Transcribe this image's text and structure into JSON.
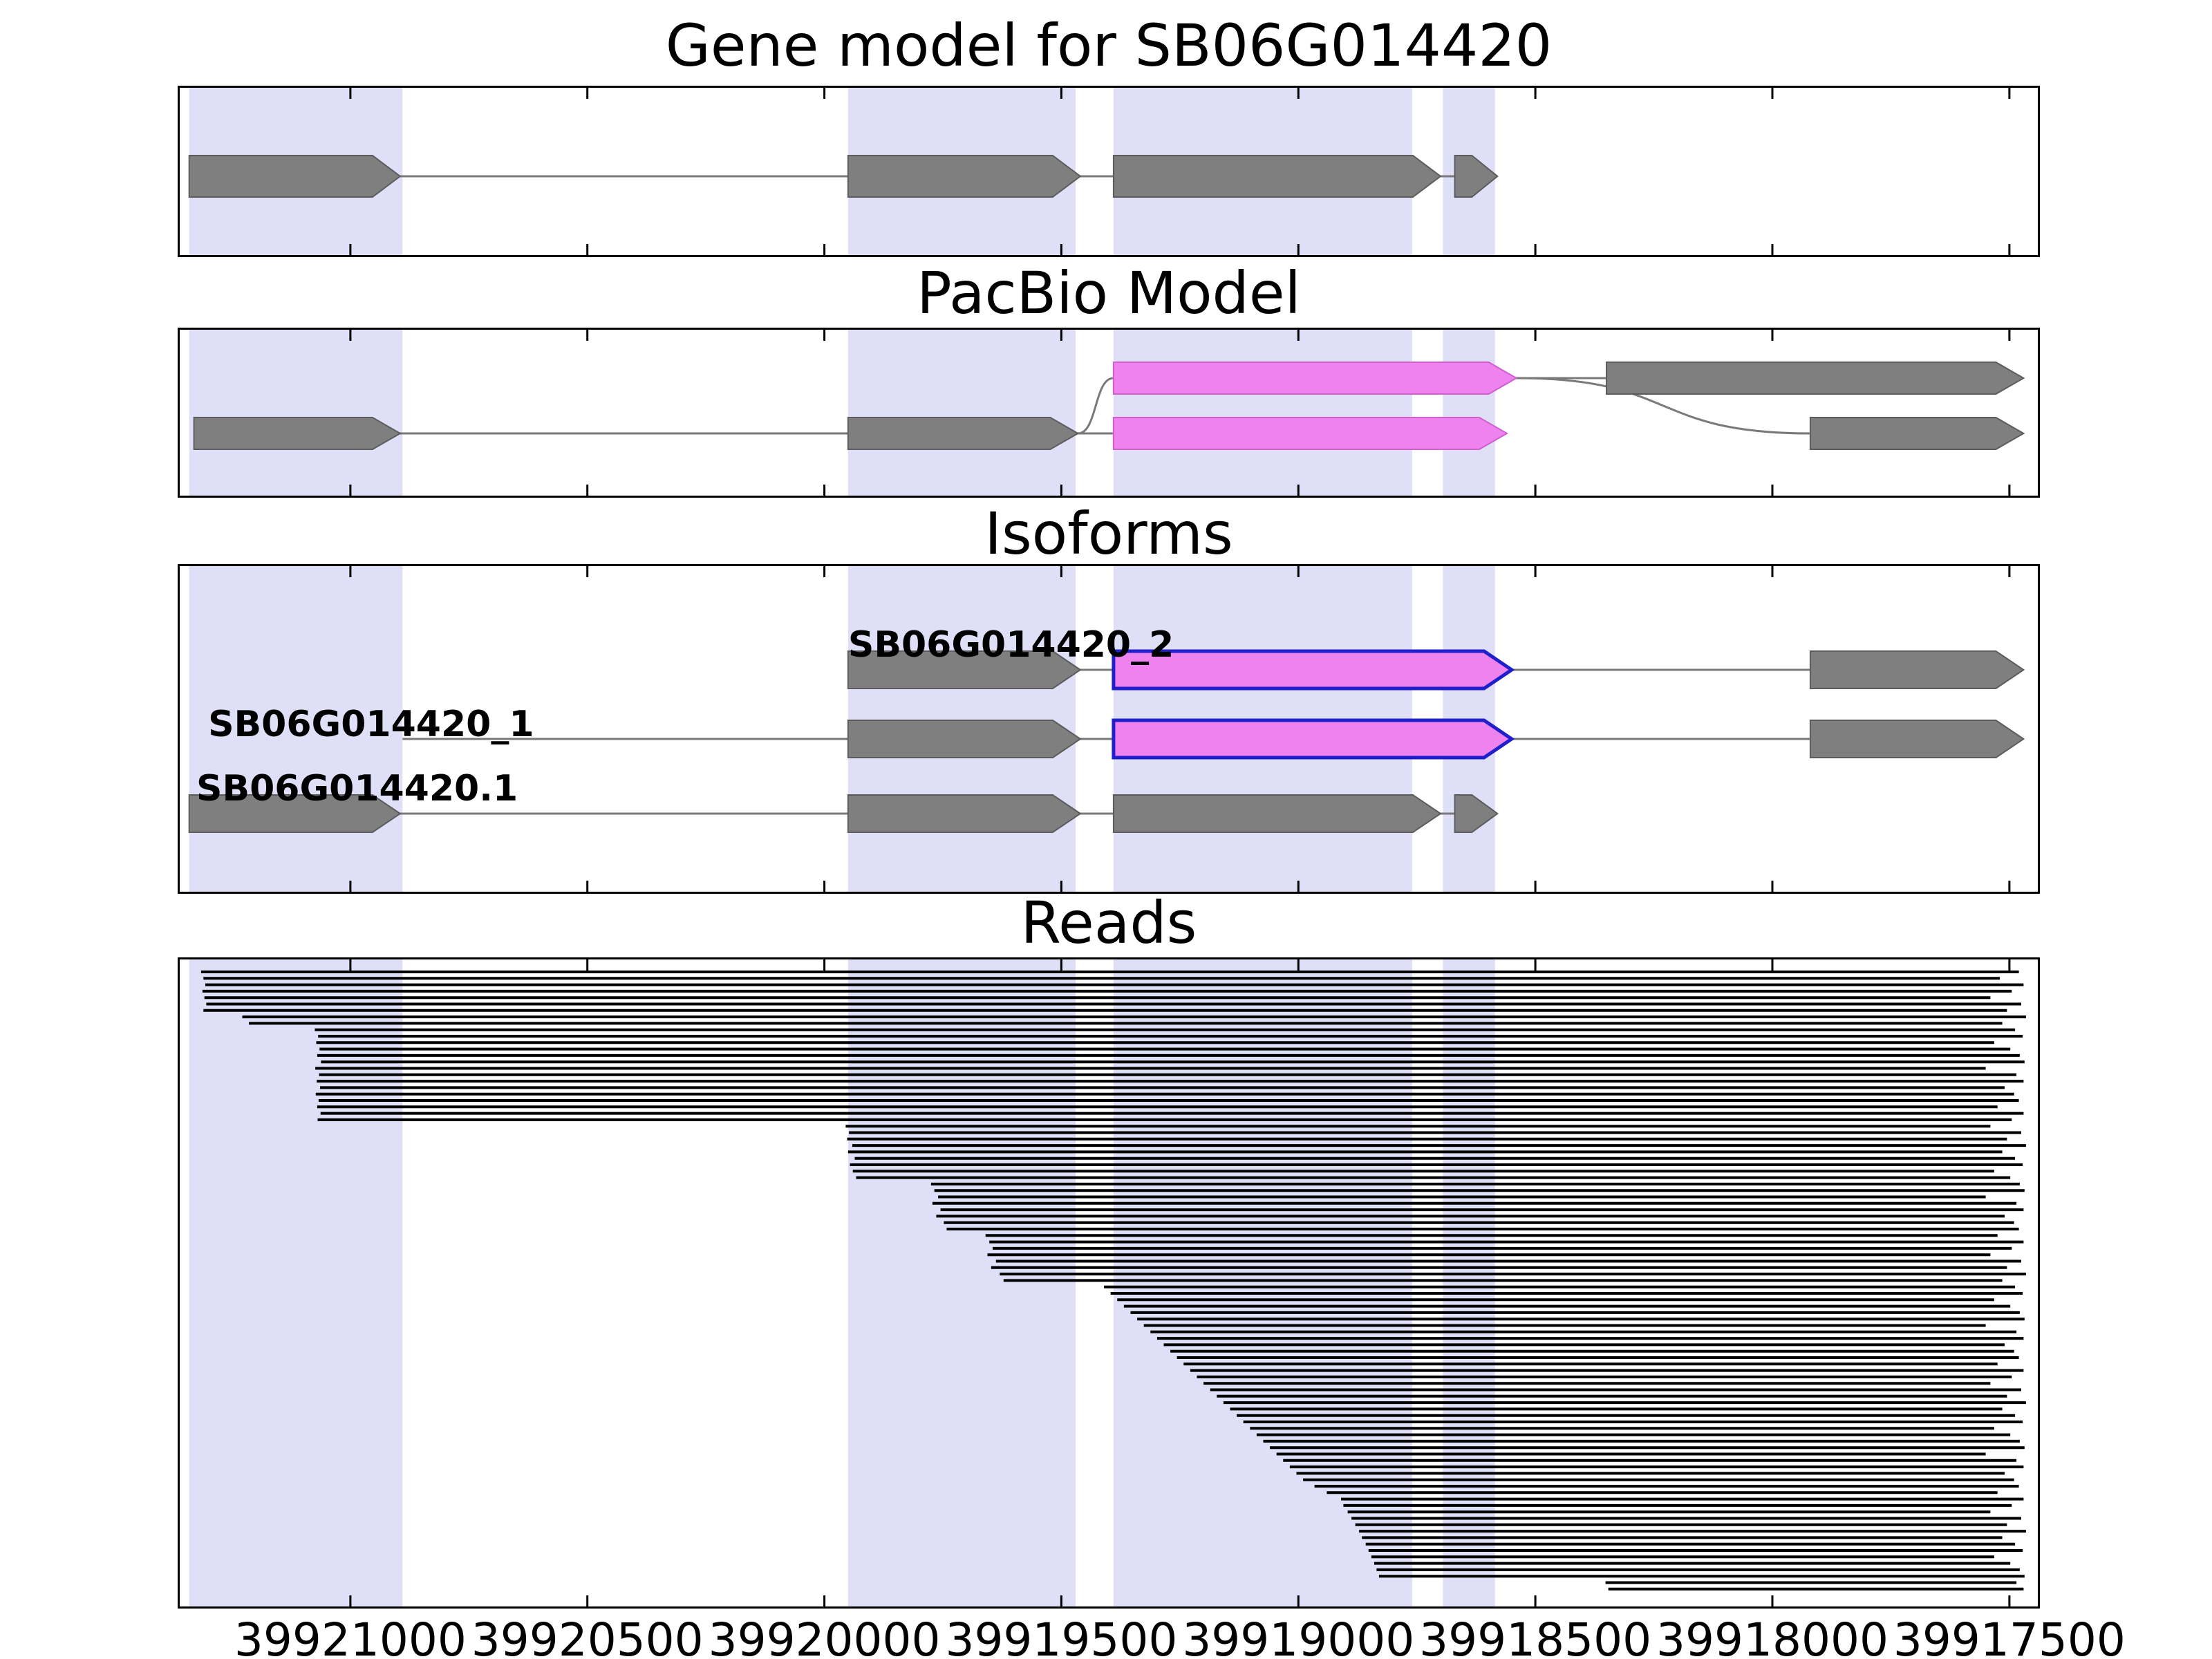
{
  "figure": {
    "background": "#ffffff"
  },
  "colors": {
    "band_fill": "#dfdff7",
    "exon_gray": "#7f7f7f",
    "exon_gray_edge": "#5c5c5c",
    "exon_magenta": "#ee82ee",
    "exon_magenta_edge": "#cf5fcf",
    "isoform_outline_blue": "#1f1fcc",
    "connector": "#7a7a7a",
    "read": "#000000",
    "panel_border": "#000000",
    "text": "#000000"
  },
  "chart_data": {
    "type": "genome-tracks",
    "x_axis": {
      "range_left": 39921360,
      "range_right": 39917440,
      "direction": "decreasing",
      "tick_values": [
        39921000,
        39920500,
        39920000,
        39919500,
        39919000,
        39918500,
        39918000,
        39917500
      ],
      "tick_labels": [
        "39921000",
        "39920500",
        "39920000",
        "39919500",
        "39919000",
        "39918500",
        "39918000",
        "39917500"
      ]
    },
    "shaded_regions": [
      [
        39921340,
        39920890
      ],
      [
        39919950,
        39919470
      ],
      [
        39919390,
        39918760
      ],
      [
        39918695,
        39918585
      ]
    ],
    "panels": [
      {
        "title": "Gene model for SB06G014420",
        "transcripts": [
          {
            "row": 0,
            "lines": [
              [
                39921340,
                39918580
              ]
            ],
            "exons": [
              {
                "start": 39921340,
                "end": 39920895,
                "color": "gray"
              },
              {
                "start": 39919950,
                "end": 39919460,
                "color": "gray"
              },
              {
                "start": 39919390,
                "end": 39918700,
                "color": "gray"
              },
              {
                "start": 39918670,
                "end": 39918580,
                "color": "gray"
              }
            ]
          }
        ]
      },
      {
        "title": "PacBio Model",
        "transcripts": [
          {
            "row": 0,
            "lines": [
              [
                39918540,
                39918350
              ]
            ],
            "exons": [
              {
                "start": 39919390,
                "end": 39918540,
                "color": "magenta"
              },
              {
                "start": 39918350,
                "end": 39917470,
                "color": "gray"
              }
            ]
          },
          {
            "row": 1,
            "lines": [
              [
                39921330,
                39919390
              ]
            ],
            "exons": [
              {
                "start": 39921330,
                "end": 39920895,
                "color": "gray"
              },
              {
                "start": 39919950,
                "end": 39919465,
                "color": "gray"
              },
              {
                "start": 39919390,
                "end": 39918560,
                "color": "magenta"
              },
              {
                "start": 39917920,
                "end": 39917470,
                "color": "gray"
              }
            ]
          }
        ],
        "curves": [
          {
            "from_bp": 39919465,
            "from_row": 1,
            "to_bp": 39919390,
            "to_row": 0
          },
          {
            "from_bp": 39918540,
            "from_row": 0,
            "to_bp": 39917920,
            "to_row": 1
          }
        ]
      },
      {
        "title": "Isoforms",
        "transcripts": [
          {
            "row": 0,
            "label": "SB06G014420_2",
            "label_bp": 39919950,
            "label_pos": "above",
            "lines": [
              [
                39919950,
                39917480
              ]
            ],
            "exons": [
              {
                "start": 39919950,
                "end": 39919460,
                "color": "gray"
              },
              {
                "start": 39919390,
                "end": 39918550,
                "color": "magenta",
                "outline": "blue"
              },
              {
                "start": 39917920,
                "end": 39917470,
                "color": "gray"
              }
            ]
          },
          {
            "row": 1,
            "label": "SB06G014420_1",
            "label_bp": 39921300,
            "label_pos": "mid",
            "lines": [
              [
                39920890,
                39917480
              ]
            ],
            "exons": [
              {
                "start": 39919950,
                "end": 39919460,
                "color": "gray"
              },
              {
                "start": 39919390,
                "end": 39918550,
                "color": "magenta",
                "outline": "blue"
              },
              {
                "start": 39917920,
                "end": 39917470,
                "color": "gray"
              }
            ]
          },
          {
            "row": 2,
            "label": "SB06G014420.1",
            "label_bp": 39921325,
            "label_pos": "above",
            "lines": [
              [
                39921340,
                39918580
              ]
            ],
            "exons": [
              {
                "start": 39921340,
                "end": 39920895,
                "color": "gray"
              },
              {
                "start": 39919950,
                "end": 39919460,
                "color": "gray"
              },
              {
                "start": 39919390,
                "end": 39918700,
                "color": "gray"
              },
              {
                "start": 39918670,
                "end": 39918580,
                "color": "gray"
              }
            ]
          }
        ]
      },
      {
        "title": "Reads",
        "reads": [
          [
            39921315,
            39917480
          ],
          [
            39921310,
            39917520
          ],
          [
            39921306,
            39917470
          ],
          [
            39921312,
            39917495
          ],
          [
            39921308,
            39917540
          ],
          [
            39921304,
            39917475
          ],
          [
            39921310,
            39917505
          ],
          [
            39921228,
            39917465
          ],
          [
            39921214,
            39917515
          ],
          [
            39921075,
            39917488
          ],
          [
            39921068,
            39917472
          ],
          [
            39921072,
            39917532
          ],
          [
            39921065,
            39917498
          ],
          [
            39921070,
            39917478
          ],
          [
            39921062,
            39917468
          ],
          [
            39921074,
            39917550
          ],
          [
            39921066,
            39917485
          ],
          [
            39921071,
            39917470
          ],
          [
            39921064,
            39917510
          ],
          [
            39921073,
            39917490
          ],
          [
            39921067,
            39917480
          ],
          [
            39921070,
            39917525
          ],
          [
            39921063,
            39917470
          ],
          [
            39921069,
            39917495
          ],
          [
            39919955,
            39917540
          ],
          [
            39919948,
            39917475
          ],
          [
            39919952,
            39917505
          ],
          [
            39919941,
            39917465
          ],
          [
            39919950,
            39917515
          ],
          [
            39919936,
            39917488
          ],
          [
            39919946,
            39917472
          ],
          [
            39919940,
            39917532
          ],
          [
            39919933,
            39917498
          ],
          [
            39919775,
            39917478
          ],
          [
            39919768,
            39917468
          ],
          [
            39919760,
            39917550
          ],
          [
            39919772,
            39917485
          ],
          [
            39919755,
            39917470
          ],
          [
            39919764,
            39917510
          ],
          [
            39919748,
            39917490
          ],
          [
            39919742,
            39917480
          ],
          [
            39919660,
            39917525
          ],
          [
            39919652,
            39917470
          ],
          [
            39919645,
            39917495
          ],
          [
            39919656,
            39917540
          ],
          [
            39919638,
            39917475
          ],
          [
            39919648,
            39917505
          ],
          [
            39919630,
            39917465
          ],
          [
            39919622,
            39917515
          ],
          [
            39919410,
            39917488
          ],
          [
            39919396,
            39917472
          ],
          [
            39919382,
            39917532
          ],
          [
            39919368,
            39917498
          ],
          [
            39919354,
            39917478
          ],
          [
            39919340,
            39917468
          ],
          [
            39919326,
            39917550
          ],
          [
            39919312,
            39917485
          ],
          [
            39919298,
            39917470
          ],
          [
            39919284,
            39917510
          ],
          [
            39919270,
            39917490
          ],
          [
            39919256,
            39917480
          ],
          [
            39919242,
            39917525
          ],
          [
            39919228,
            39917470
          ],
          [
            39919214,
            39917495
          ],
          [
            39919200,
            39917540
          ],
          [
            39919186,
            39917475
          ],
          [
            39919172,
            39917505
          ],
          [
            39919158,
            39917465
          ],
          [
            39919144,
            39917515
          ],
          [
            39919130,
            39917488
          ],
          [
            39919116,
            39917472
          ],
          [
            39919102,
            39917532
          ],
          [
            39919088,
            39917498
          ],
          [
            39919074,
            39917478
          ],
          [
            39919060,
            39917468
          ],
          [
            39919046,
            39917550
          ],
          [
            39919032,
            39917485
          ],
          [
            39919018,
            39917470
          ],
          [
            39919004,
            39917510
          ],
          [
            39918990,
            39917490
          ],
          [
            39918966,
            39917480
          ],
          [
            39918940,
            39917525
          ],
          [
            39918910,
            39917470
          ],
          [
            39918905,
            39917495
          ],
          [
            39918896,
            39917540
          ],
          [
            39918888,
            39917475
          ],
          [
            39918880,
            39917505
          ],
          [
            39918872,
            39917465
          ],
          [
            39918866,
            39917515
          ],
          [
            39918858,
            39917488
          ],
          [
            39918852,
            39917472
          ],
          [
            39918846,
            39917532
          ],
          [
            39918840,
            39917498
          ],
          [
            39918835,
            39917478
          ],
          [
            39918830,
            39917468
          ],
          [
            39918352,
            39917485
          ],
          [
            39918346,
            39917470
          ]
        ]
      }
    ]
  }
}
